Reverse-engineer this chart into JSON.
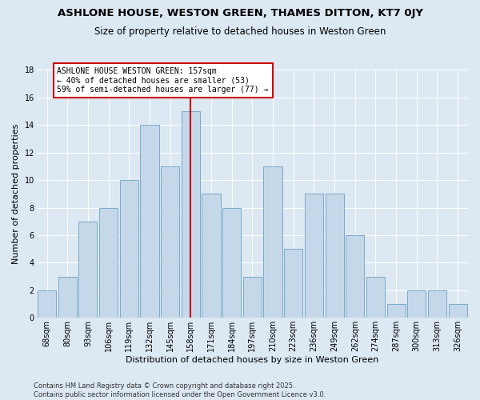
{
  "title": "ASHLONE HOUSE, WESTON GREEN, THAMES DITTON, KT7 0JY",
  "subtitle": "Size of property relative to detached houses in Weston Green",
  "xlabel": "Distribution of detached houses by size in Weston Green",
  "ylabel": "Number of detached properties",
  "categories": [
    "68sqm",
    "80sqm",
    "93sqm",
    "106sqm",
    "119sqm",
    "132sqm",
    "145sqm",
    "158sqm",
    "171sqm",
    "184sqm",
    "197sqm",
    "210sqm",
    "223sqm",
    "236sqm",
    "249sqm",
    "262sqm",
    "274sqm",
    "287sqm",
    "300sqm",
    "313sqm",
    "326sqm"
  ],
  "values": [
    2,
    3,
    7,
    8,
    10,
    14,
    11,
    15,
    9,
    8,
    3,
    11,
    5,
    9,
    9,
    6,
    3,
    1,
    2,
    2,
    1
  ],
  "bar_color": "#c5d8ea",
  "bar_edge_color": "#7aaac8",
  "vline_x_index": 7,
  "vline_color": "#cc0000",
  "annotation_text": "ASHLONE HOUSE WESTON GREEN: 157sqm\n← 40% of detached houses are smaller (53)\n59% of semi-detached houses are larger (77) →",
  "annotation_box_color": "#ffffff",
  "annotation_box_edge": "#cc0000",
  "ylim": [
    0,
    18
  ],
  "yticks": [
    0,
    2,
    4,
    6,
    8,
    10,
    12,
    14,
    16,
    18
  ],
  "grid_color": "#ffffff",
  "bg_color": "#dce8f2",
  "footer": "Contains HM Land Registry data © Crown copyright and database right 2025.\nContains public sector information licensed under the Open Government Licence v3.0.",
  "title_fontsize": 9.5,
  "subtitle_fontsize": 8.5,
  "xlabel_fontsize": 8,
  "ylabel_fontsize": 8,
  "annotation_fontsize": 7,
  "tick_fontsize": 7,
  "footer_fontsize": 6
}
